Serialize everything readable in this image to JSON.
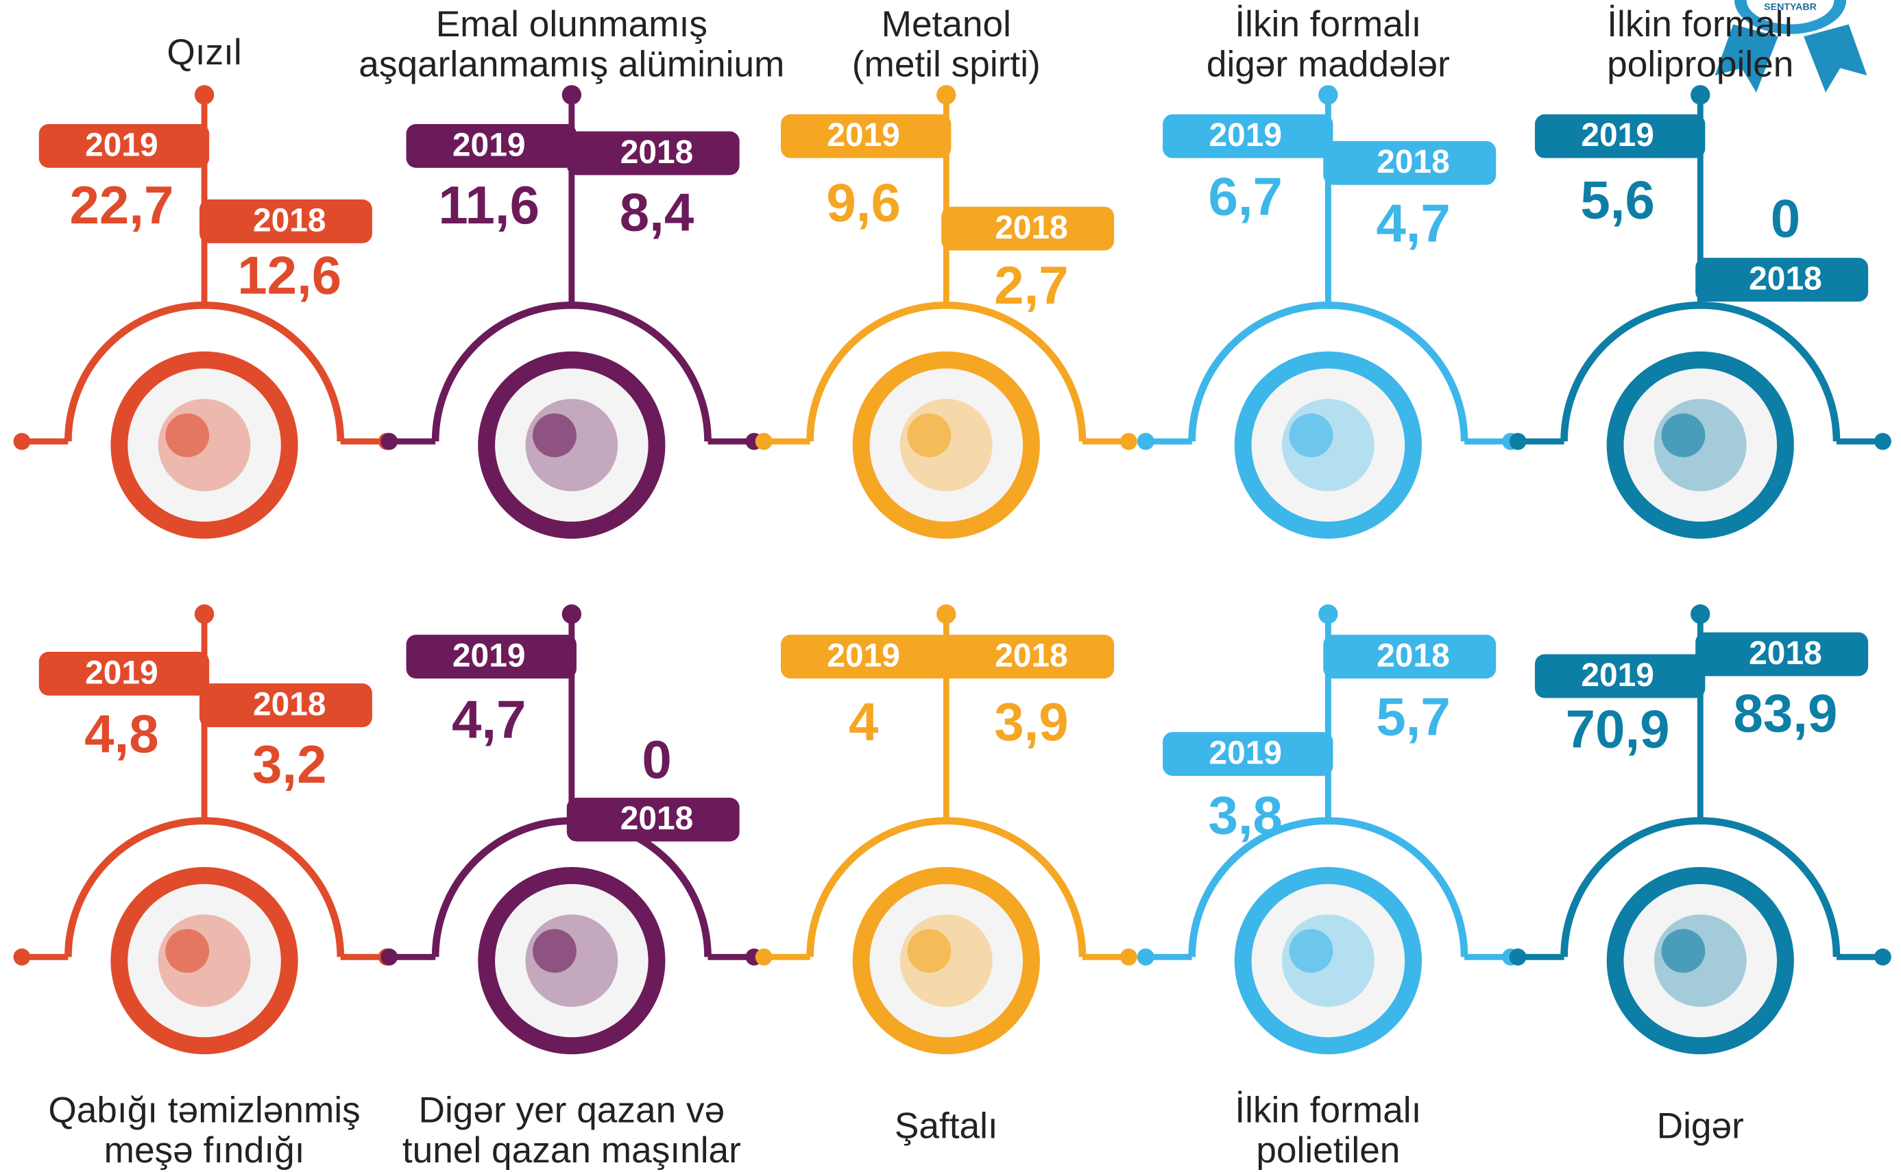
{
  "badge": "SENTYABR",
  "items": [
    {
      "name_lines": [
        "Qızıl"
      ],
      "color": "#e04b2b",
      "year_a": "2019",
      "value_a": "22,7",
      "year_b": "2018",
      "value_b": "12,6"
    },
    {
      "name_lines": [
        "Emal olunmamış",
        "aşqarlanmamış alüminium"
      ],
      "color": "#6b1b59",
      "year_a": "2019",
      "value_a": "11,6",
      "year_b": "2018",
      "value_b": "8,4"
    },
    {
      "name_lines": [
        "Metanol",
        "(metil spirti)"
      ],
      "color": "#f5a623",
      "year_a": "2019",
      "value_a": "9,6",
      "year_b": "2018",
      "value_b": "2,7"
    },
    {
      "name_lines": [
        "İlkin formalı",
        "digər maddələr"
      ],
      "color": "#3db6ea",
      "year_a": "2019",
      "value_a": "6,7",
      "year_b": "2018",
      "value_b": "4,7"
    },
    {
      "name_lines": [
        "İlkin formalı",
        "polipropilen"
      ],
      "color": "#0d7ea6",
      "year_a": "2019",
      "value_a": "5,6",
      "year_b": "2018",
      "value_b": "0"
    },
    {
      "name_lines": [
        "Qabığı təmizlənmiş",
        "meşə fındığı"
      ],
      "color": "#e04b2b",
      "year_a": "2019",
      "value_a": "4,8",
      "year_b": "2018",
      "value_b": "3,2"
    },
    {
      "name_lines": [
        "Digər yer qazan və",
        "tunel qazan maşınlar"
      ],
      "color": "#6b1b59",
      "year_a": "2019",
      "value_a": "4,7",
      "year_b": "2018",
      "value_b": "0"
    },
    {
      "name_lines": [
        "Şaftalı"
      ],
      "color": "#f5a623",
      "year_a": "2019",
      "value_a": "4",
      "year_b": "2018",
      "value_b": "3,9"
    },
    {
      "name_lines": [
        "İlkin formalı",
        "polietilen"
      ],
      "color": "#3db6ea",
      "year_a": "2019",
      "value_a": "3,8",
      "year_b": "2018",
      "value_b": "5,7"
    },
    {
      "name_lines": [
        "Digər"
      ],
      "color": "#0d7ea6",
      "year_a": "2019",
      "value_a": "70,9",
      "year_b": "2018",
      "value_b": "83,9"
    }
  ]
}
